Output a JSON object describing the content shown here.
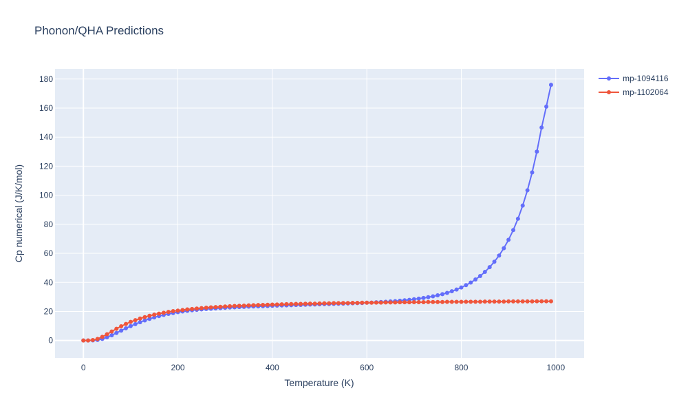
{
  "chart_data": {
    "type": "line",
    "title": "Phonon/QHA Predictions",
    "xlabel": "Temperature (K)",
    "ylabel": "Cp numerical (J/K/mol)",
    "xlim": [
      -60,
      1060
    ],
    "ylim": [
      -12,
      187
    ],
    "xticks": [
      0,
      200,
      400,
      600,
      800,
      1000
    ],
    "xtick_labels": [
      "0",
      "200",
      "400",
      "600",
      "800",
      "1000"
    ],
    "yticks": [
      0,
      20,
      40,
      60,
      80,
      100,
      120,
      140,
      160,
      180
    ],
    "ytick_labels": [
      "0",
      "20",
      "40",
      "60",
      "80",
      "100",
      "120",
      "140",
      "160",
      "180"
    ],
    "grid": true,
    "legend_position": "top-right",
    "series": [
      {
        "name": "mp-1094116",
        "color": "#636efa",
        "x": [
          0,
          10,
          20,
          30,
          40,
          50,
          60,
          70,
          80,
          90,
          100,
          110,
          120,
          130,
          140,
          150,
          160,
          170,
          180,
          190,
          200,
          210,
          220,
          230,
          240,
          250,
          260,
          270,
          280,
          290,
          300,
          310,
          320,
          330,
          340,
          350,
          360,
          370,
          380,
          390,
          400,
          410,
          420,
          430,
          440,
          450,
          460,
          470,
          480,
          490,
          500,
          510,
          520,
          530,
          540,
          550,
          560,
          570,
          580,
          590,
          600,
          610,
          620,
          630,
          640,
          650,
          660,
          670,
          680,
          690,
          700,
          710,
          720,
          730,
          740,
          750,
          760,
          770,
          780,
          790,
          800,
          810,
          820,
          830,
          840,
          850,
          860,
          870,
          880,
          890,
          900,
          910,
          920,
          930,
          940,
          950,
          960,
          970,
          980,
          990
        ],
        "y": [
          0,
          0,
          0.1,
          0.4,
          1.1,
          2.2,
          3.6,
          5.2,
          6.8,
          8.4,
          9.9,
          11.3,
          12.6,
          13.8,
          14.9,
          15.9,
          16.8,
          17.6,
          18.3,
          18.9,
          19.5,
          20.0,
          20.4,
          20.8,
          21.1,
          21.4,
          21.7,
          21.9,
          22.1,
          22.3,
          22.5,
          22.7,
          22.8,
          23.0,
          23.1,
          23.3,
          23.4,
          23.5,
          23.6,
          23.7,
          23.9,
          24.0,
          24.1,
          24.2,
          24.3,
          24.4,
          24.5,
          24.6,
          24.7,
          24.8,
          24.9,
          25.0,
          25.1,
          25.2,
          25.3,
          25.4,
          25.5,
          25.6,
          25.7,
          25.8,
          26.0,
          26.1,
          26.3,
          26.5,
          26.7,
          26.9,
          27.1,
          27.4,
          27.7,
          28.0,
          28.4,
          28.8,
          29.3,
          29.8,
          30.4,
          31.1,
          31.9,
          32.8,
          33.9,
          35.1,
          36.5,
          38.1,
          39.9,
          42.0,
          44.4,
          47.2,
          50.5,
          54.2,
          58.5,
          63.5,
          69.3,
          76.0,
          83.8,
          92.9,
          103.4,
          115.7,
          130.0,
          146.6,
          161.0,
          176.0
        ]
      },
      {
        "name": "mp-1102064",
        "color": "#ef553b",
        "x": [
          0,
          10,
          20,
          30,
          40,
          50,
          60,
          70,
          80,
          90,
          100,
          110,
          120,
          130,
          140,
          150,
          160,
          170,
          180,
          190,
          200,
          210,
          220,
          230,
          240,
          250,
          260,
          270,
          280,
          290,
          300,
          310,
          320,
          330,
          340,
          350,
          360,
          370,
          380,
          390,
          400,
          410,
          420,
          430,
          440,
          450,
          460,
          470,
          480,
          490,
          500,
          510,
          520,
          530,
          540,
          550,
          560,
          570,
          580,
          590,
          600,
          610,
          620,
          630,
          640,
          650,
          660,
          670,
          680,
          690,
          700,
          710,
          720,
          730,
          740,
          750,
          760,
          770,
          780,
          790,
          800,
          810,
          820,
          830,
          840,
          850,
          860,
          870,
          880,
          890,
          900,
          910,
          920,
          930,
          940,
          950,
          960,
          970,
          980,
          990
        ],
        "y": [
          0,
          0,
          0.3,
          1.1,
          2.5,
          4.3,
          6.2,
          8.1,
          9.8,
          11.4,
          12.8,
          14.0,
          15.1,
          16.1,
          17.0,
          17.8,
          18.5,
          19.1,
          19.7,
          20.2,
          20.6,
          21.0,
          21.4,
          21.7,
          22.0,
          22.3,
          22.6,
          22.8,
          23.0,
          23.2,
          23.4,
          23.6,
          23.8,
          23.9,
          24.0,
          24.2,
          24.3,
          24.4,
          24.5,
          24.6,
          24.7,
          24.8,
          24.9,
          25.0,
          25.1,
          25.2,
          25.2,
          25.3,
          25.4,
          25.4,
          25.5,
          25.6,
          25.6,
          25.7,
          25.7,
          25.8,
          25.8,
          25.9,
          25.9,
          26.0,
          26.0,
          26.0,
          26.1,
          26.1,
          26.2,
          26.2,
          26.2,
          26.3,
          26.3,
          26.3,
          26.4,
          26.4,
          26.4,
          26.5,
          26.5,
          26.5,
          26.5,
          26.6,
          26.6,
          26.6,
          26.6,
          26.7,
          26.7,
          26.7,
          26.7,
          26.8,
          26.8,
          26.8,
          26.8,
          26.8,
          26.9,
          26.9,
          26.9,
          26.9,
          26.9,
          26.9,
          27.0,
          27.0,
          27.0,
          27.0
        ]
      }
    ]
  }
}
